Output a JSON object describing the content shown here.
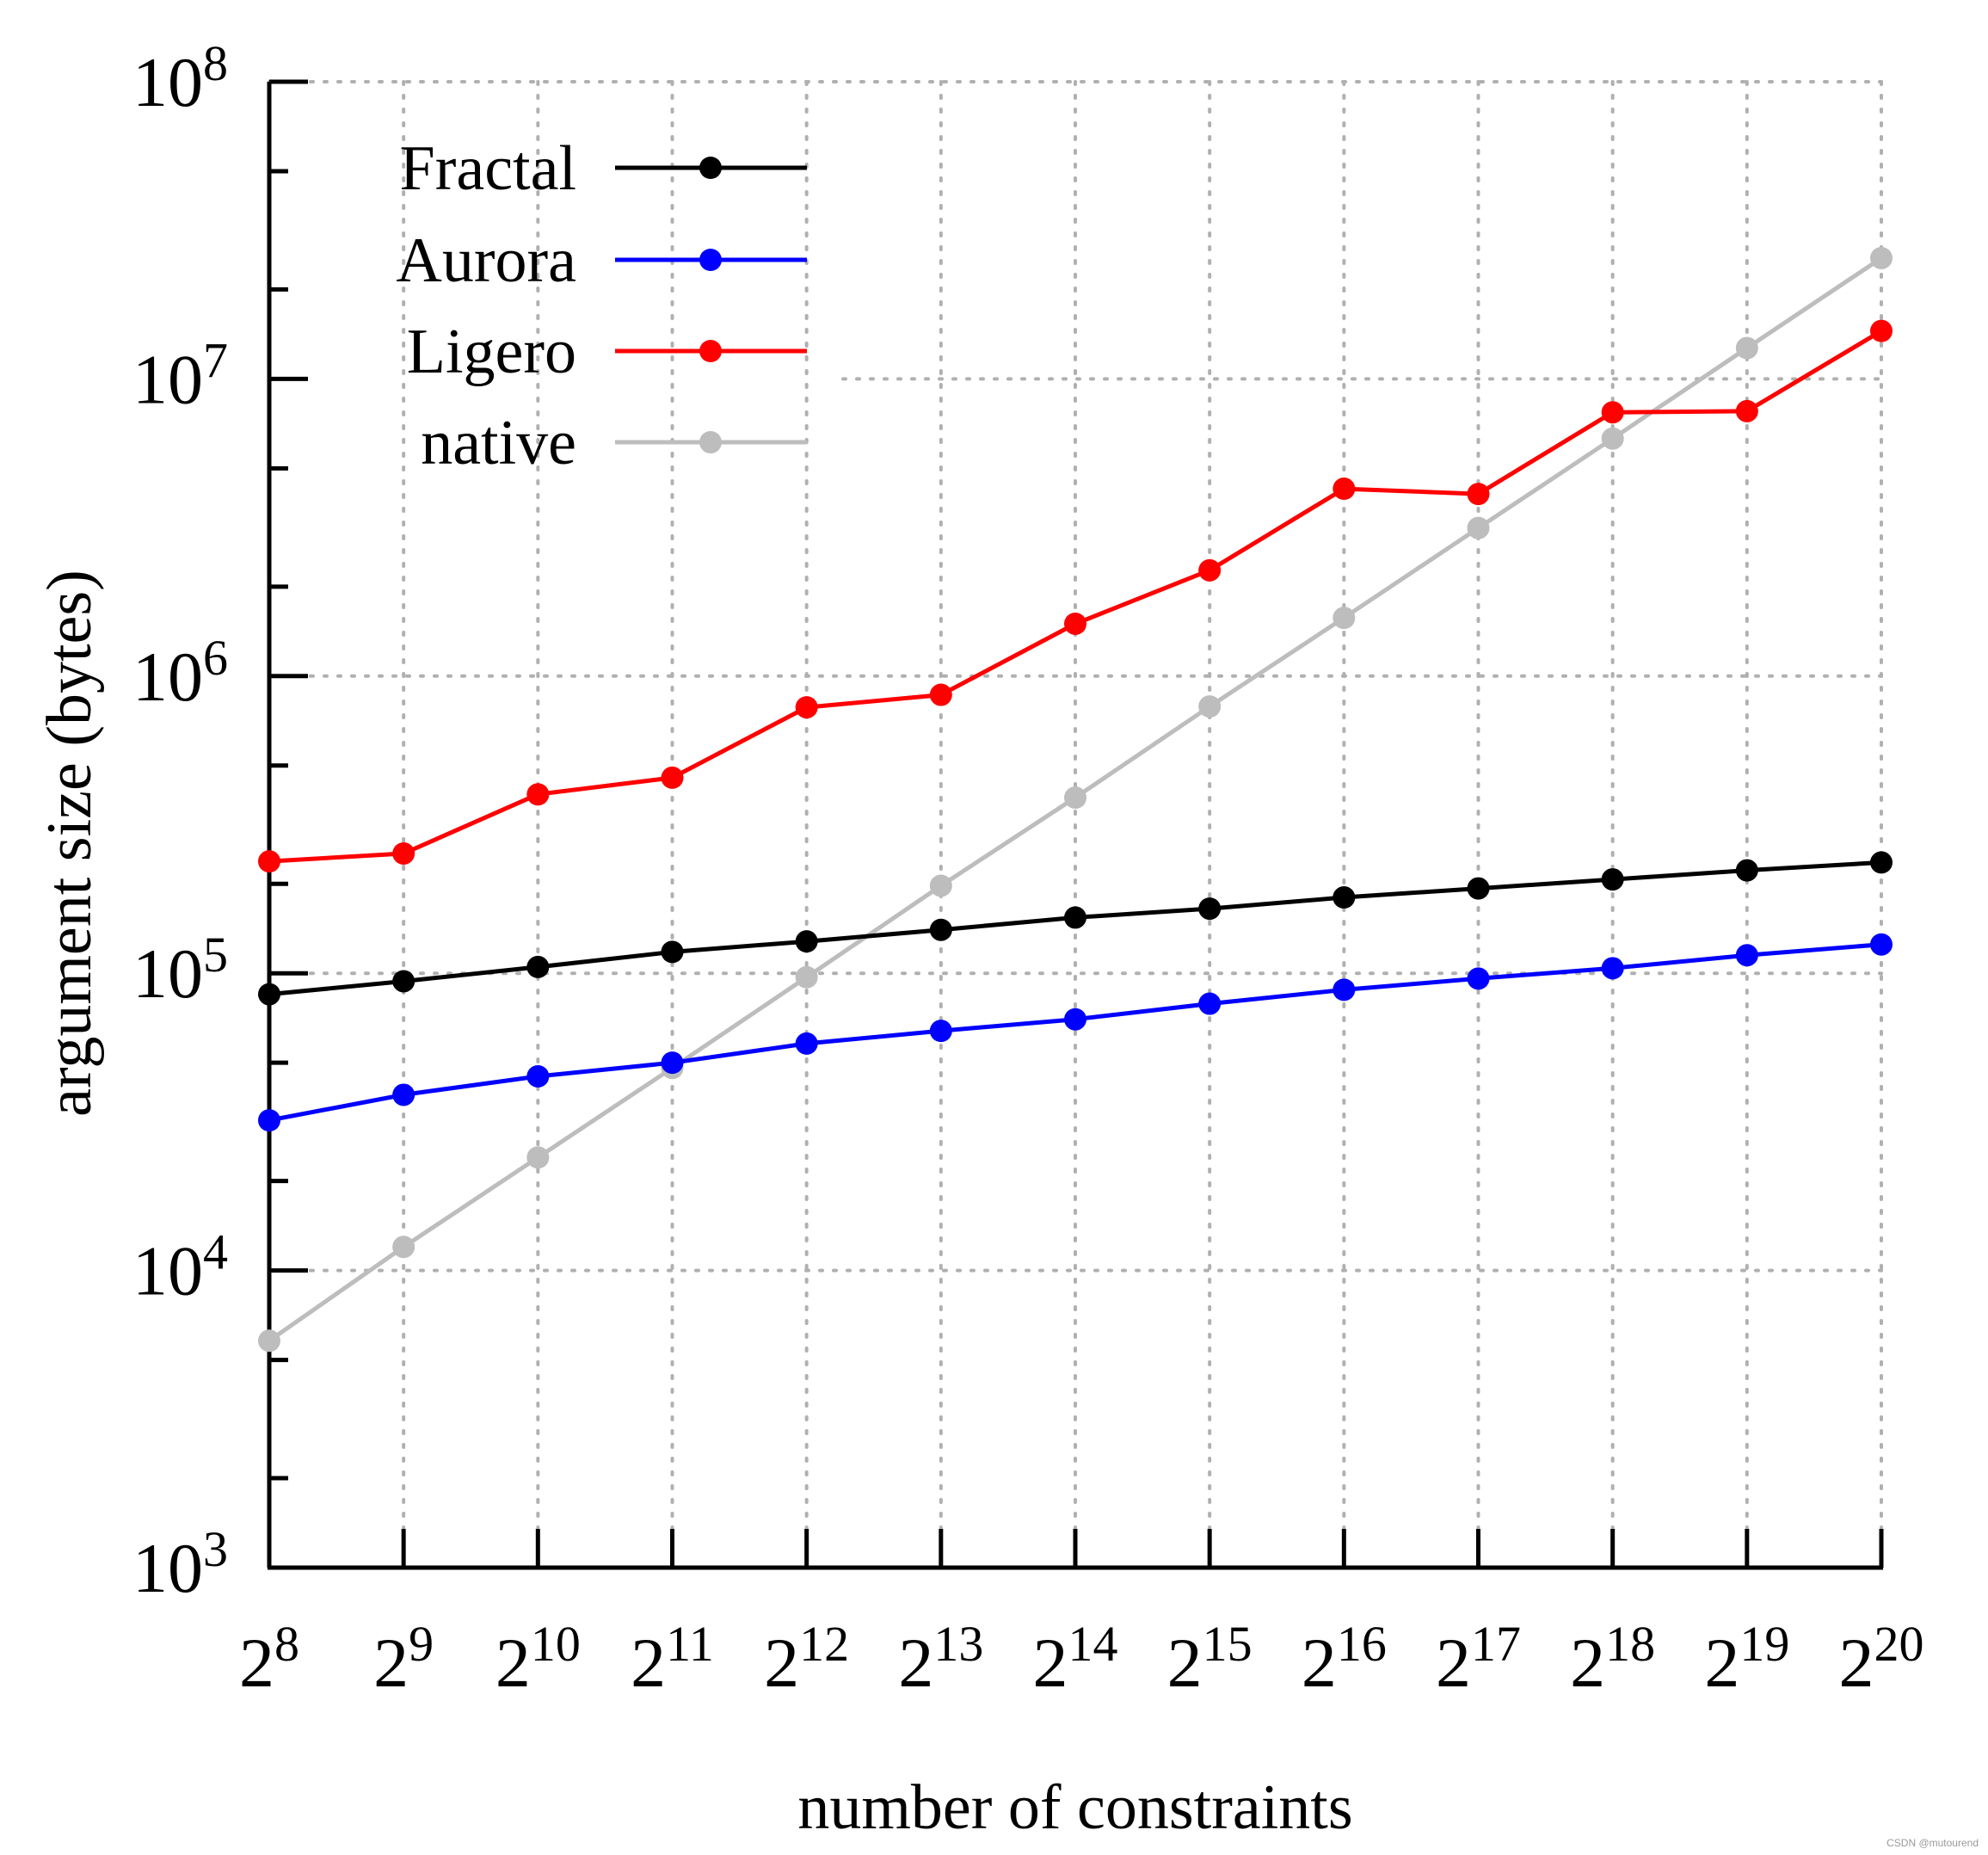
{
  "chart_data": {
    "type": "line",
    "title": "",
    "xlabel": "number of constraints",
    "ylabel": "argument size (bytes)",
    "x_scale": "log2",
    "y_scale": "log10",
    "x": [
      256,
      512,
      1024,
      2048,
      4096,
      8192,
      16384,
      32768,
      65536,
      131072,
      262144,
      524288,
      1048576
    ],
    "x_tick_labels": [
      {
        "base": "2",
        "exp": "8"
      },
      {
        "base": "2",
        "exp": "9"
      },
      {
        "base": "2",
        "exp": "10"
      },
      {
        "base": "2",
        "exp": "11"
      },
      {
        "base": "2",
        "exp": "12"
      },
      {
        "base": "2",
        "exp": "13"
      },
      {
        "base": "2",
        "exp": "14"
      },
      {
        "base": "2",
        "exp": "15"
      },
      {
        "base": "2",
        "exp": "16"
      },
      {
        "base": "2",
        "exp": "17"
      },
      {
        "base": "2",
        "exp": "18"
      },
      {
        "base": "2",
        "exp": "19"
      },
      {
        "base": "2",
        "exp": "20"
      }
    ],
    "y_tick_labels": [
      {
        "base": "10",
        "exp": "3"
      },
      {
        "base": "10",
        "exp": "4"
      },
      {
        "base": "10",
        "exp": "5"
      },
      {
        "base": "10",
        "exp": "6"
      },
      {
        "base": "10",
        "exp": "7"
      },
      {
        "base": "10",
        "exp": "8"
      }
    ],
    "ylim": [
      1000,
      100000000
    ],
    "grid": true,
    "legend_position": "top-left",
    "series": [
      {
        "name": "Fractal",
        "color": "#000000",
        "values": [
          85000,
          94000,
          105000,
          118000,
          128000,
          140000,
          154000,
          165000,
          180000,
          193000,
          207000,
          222000,
          236000
        ]
      },
      {
        "name": "Aurora",
        "color": "#0000ff",
        "values": [
          32000,
          39000,
          45000,
          50000,
          58000,
          64000,
          70000,
          79000,
          88000,
          96000,
          104000,
          115000,
          125000
        ]
      },
      {
        "name": "Ligero",
        "color": "#ff0000",
        "values": [
          238000,
          253000,
          400000,
          455000,
          785000,
          865000,
          1500000,
          2270000,
          4270000,
          4100000,
          7720000,
          7790000,
          14500000
        ]
      },
      {
        "name": "native",
        "color": "#bdbdbd",
        "values": [
          5800,
          12000,
          24000,
          48000,
          97000,
          197000,
          390000,
          790000,
          1570000,
          3150000,
          6300000,
          12700000,
          25500000
        ]
      }
    ]
  },
  "watermark": "CSDN @mutourend"
}
